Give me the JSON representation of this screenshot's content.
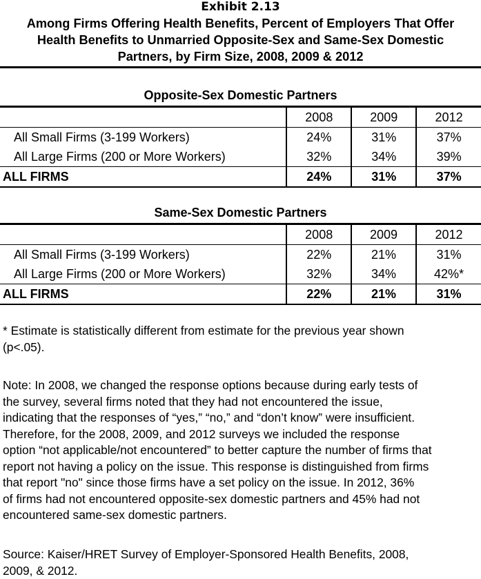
{
  "exhibit_label": "Exhibit 2.13",
  "title_lines": [
    "Among Firms Offering Health Benefits, Percent of Employers That Offer",
    "Health Benefits to Unmarried  Opposite-Sex and Same-Sex Domestic",
    "Partners, by Firm Size, 2008, 2009 & 2012"
  ],
  "tables": [
    {
      "section_title": "Opposite-Sex Domestic Partners",
      "years": [
        "2008",
        "2009",
        "2012"
      ],
      "rows": [
        {
          "label": "All Small Firms (3-199 Workers)",
          "values": [
            "24%",
            "31%",
            "37%"
          ]
        },
        {
          "label": "All Large Firms (200 or More Workers)",
          "values": [
            "32%",
            "34%",
            "39%"
          ]
        }
      ],
      "total": {
        "label": "ALL FIRMS",
        "values": [
          "24%",
          "31%",
          "37%"
        ]
      }
    },
    {
      "section_title": "Same-Sex Domestic Partners",
      "years": [
        "2008",
        "2009",
        "2012"
      ],
      "rows": [
        {
          "label": "All Small Firms (3-199 Workers)",
          "values": [
            "22%",
            "21%",
            "31%"
          ]
        },
        {
          "label": "All Large Firms (200 or More Workers)",
          "values": [
            "32%",
            "34%",
            "42%*"
          ]
        }
      ],
      "total": {
        "label": "ALL FIRMS",
        "values": [
          "22%",
          "21%",
          "31%"
        ]
      }
    }
  ],
  "footnote_lines": [
    "* Estimate is statistically different from estimate for the previous year shown",
    "(p<.05)."
  ],
  "note_lines": [
    "Note: In 2008, we changed the response options because during early tests of",
    "the survey, several firms noted that they had not encountered the issue,",
    "indicating that the responses of “yes,” “no,” and “don’t know” were insufficient.",
    "Therefore, for the 2008, 2009, and 2012 surveys we included the response",
    "option “not applicable/not encountered” to better capture the number of firms that",
    "report not having a policy on the issue.  This response is distinguished from firms",
    "that report \"no\" since those firms have a set policy on the issue.   In 2012, 36%",
    "of firms had not encountered opposite-sex domestic partners and 45% had not",
    "encountered same-sex domestic partners."
  ],
  "source_lines": [
    "Source: Kaiser/HRET Survey of Employer-Sponsored Health Benefits, 2008,",
    "2009, & 2012."
  ]
}
